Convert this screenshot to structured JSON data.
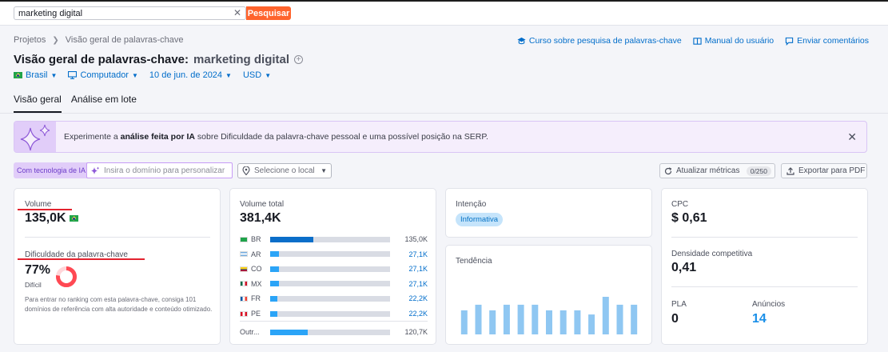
{
  "search": {
    "value": "marketing digital",
    "button_label": "Pesquisar"
  },
  "breadcrumb": {
    "items": [
      "Projetos",
      "Visão geral de palavras-chave"
    ]
  },
  "header_links": [
    {
      "label": "Curso sobre pesquisa de palavras-chave",
      "icon": "graduation-cap-icon"
    },
    {
      "label": "Manual do usuário",
      "icon": "book-icon"
    },
    {
      "label": "Enviar comentários",
      "icon": "comment-icon"
    }
  ],
  "title": {
    "main": "Visão geral de palavras-chave:",
    "keyword": "marketing digital"
  },
  "filters": {
    "country": "Brasil",
    "device": "Computador",
    "date": "10 de jun. de 2024",
    "currency": "USD"
  },
  "tabs": [
    {
      "label": "Visão geral",
      "active": true
    },
    {
      "label": "Análise em lote",
      "active": false
    }
  ],
  "banner": {
    "prefix": "Experimente a ",
    "bold": "análise feita por IA",
    "suffix": " sobre Dificuldade da palavra-chave pessoal e uma possível posição na SERP."
  },
  "ai_bar": {
    "badge": "Com tecnologia de IA",
    "domain_placeholder": "Insira o domínio para personalizar",
    "location_placeholder": "Selecione o local"
  },
  "actions": {
    "update_label": "Atualizar métricas",
    "update_count": "0/250",
    "pdf_label": "Exportar para PDF"
  },
  "volume": {
    "label": "Volume",
    "value": "135,0K"
  },
  "difficulty": {
    "label": "Dificuldade da palavra-chave",
    "value": "77%",
    "level": "Difícil",
    "percent": 77,
    "description": "Para entrar no ranking com esta palavra-chave, consiga 101 domínios de referência com alta autoridade e conteúdo otimizado.",
    "color": "#ff4953"
  },
  "total_volume": {
    "label": "Volume total",
    "value": "381,4K",
    "rows": [
      {
        "code": "BR",
        "value": "135,0K",
        "share": 0.36,
        "flag": "br"
      },
      {
        "code": "AR",
        "value": "27,1K",
        "share": 0.07,
        "flag": "ar"
      },
      {
        "code": "CO",
        "value": "27,1K",
        "share": 0.07,
        "flag": "co"
      },
      {
        "code": "MX",
        "value": "27,1K",
        "share": 0.07,
        "flag": "mx"
      },
      {
        "code": "FR",
        "value": "22,2K",
        "share": 0.06,
        "flag": "fr"
      },
      {
        "code": "PE",
        "value": "22,2K",
        "share": 0.06,
        "flag": "pe"
      }
    ],
    "other": {
      "code": "Outr...",
      "value": "120,7K",
      "share": 0.31
    }
  },
  "intent": {
    "label": "Intenção",
    "badge": "Informativa"
  },
  "trend": {
    "label": "Tendência",
    "values": [
      0.64,
      0.79,
      0.64,
      0.79,
      0.79,
      0.79,
      0.64,
      0.64,
      0.64,
      0.53,
      1.0,
      0.79,
      0.79
    ]
  },
  "cpc": {
    "label": "CPC",
    "value": "$ 0,61"
  },
  "competitive_density": {
    "label": "Densidade competitiva",
    "value": "0,41"
  },
  "pla": {
    "label": "PLA",
    "value": "0"
  },
  "ads": {
    "label": "Anúncios",
    "value": "14"
  }
}
